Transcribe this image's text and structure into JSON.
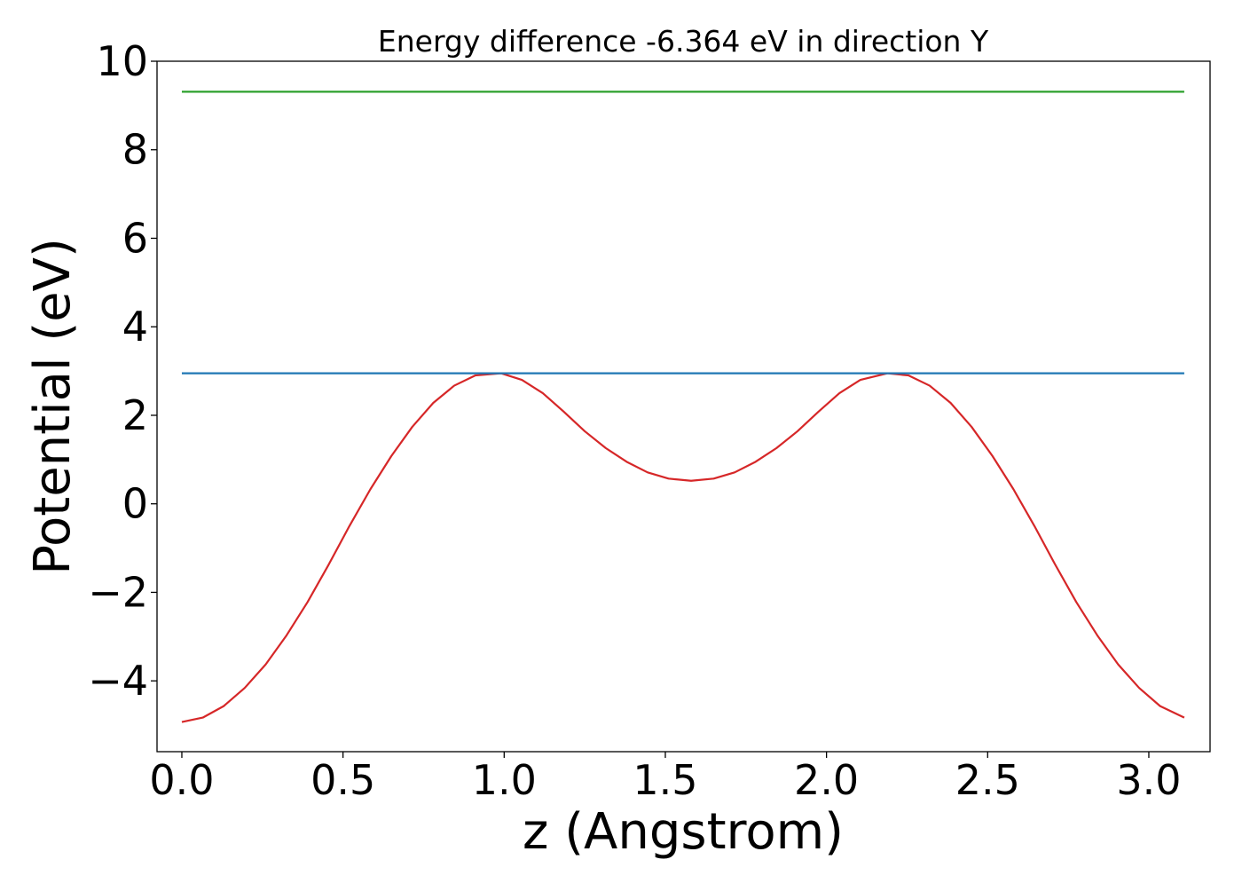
{
  "chart_data": {
    "type": "line",
    "title": "Energy difference -6.364 eV in direction Y",
    "xlabel": "z (Angstrom)",
    "ylabel": "Potential (eV)",
    "xlim": [
      -0.077,
      3.19
    ],
    "ylim": [
      -5.6,
      10.0
    ],
    "xticks": [
      0.0,
      0.5,
      1.0,
      1.5,
      2.0,
      2.5,
      3.0
    ],
    "xtick_labels": [
      "0.0",
      "0.5",
      "1.0",
      "1.5",
      "2.0",
      "2.5",
      "3.0"
    ],
    "yticks": [
      10,
      8,
      6,
      4,
      2,
      0,
      -2,
      -4
    ],
    "ytick_labels": [
      "10",
      "8",
      "6",
      "4",
      "2",
      "0",
      "−2",
      "−4"
    ],
    "grid": false,
    "legend": "none",
    "series": [
      {
        "color": "#d62728",
        "x": [
          0.0,
          0.065,
          0.13,
          0.195,
          0.26,
          0.325,
          0.39,
          0.455,
          0.52,
          0.585,
          0.65,
          0.715,
          0.78,
          0.845,
          0.91,
          0.99,
          1.055,
          1.12,
          1.185,
          1.25,
          1.315,
          1.38,
          1.445,
          1.51,
          1.58,
          1.65,
          1.715,
          1.78,
          1.845,
          1.91,
          1.975,
          2.04,
          2.105,
          2.19,
          2.255,
          2.32,
          2.385,
          2.45,
          2.515,
          2.58,
          2.645,
          2.71,
          2.775,
          2.84,
          2.905,
          2.97,
          3.035,
          3.11
        ],
        "y": [
          -4.93,
          -4.83,
          -4.57,
          -4.16,
          -3.63,
          -2.97,
          -2.22,
          -1.38,
          -0.5,
          0.33,
          1.08,
          1.74,
          2.28,
          2.67,
          2.9,
          2.95,
          2.8,
          2.5,
          2.08,
          1.64,
          1.26,
          0.95,
          0.71,
          0.57,
          0.52,
          0.57,
          0.71,
          0.95,
          1.26,
          1.64,
          2.08,
          2.5,
          2.8,
          2.95,
          2.9,
          2.67,
          2.28,
          1.74,
          1.08,
          0.33,
          -0.5,
          -1.38,
          -2.22,
          -2.97,
          -3.63,
          -4.16,
          -4.57,
          -4.83
        ]
      },
      {
        "color": "#1f77b4",
        "x": [
          0.0,
          3.11
        ],
        "y": [
          2.95,
          2.95
        ]
      },
      {
        "color": "#2ca02c",
        "x": [
          0.0,
          3.11
        ],
        "y": [
          9.31,
          9.31
        ]
      }
    ]
  }
}
